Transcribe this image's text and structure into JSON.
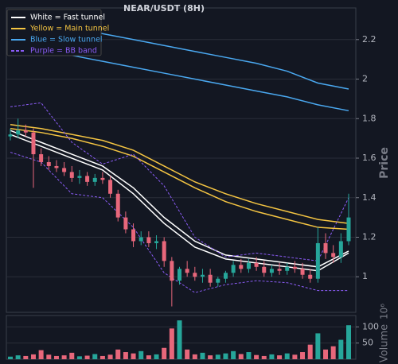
{
  "chart_data": [
    {
      "type": "candlestick",
      "title": "NEAR/USDT (8H)",
      "ylabel": "Price",
      "ylim": [
        0.82,
        2.36
      ],
      "yticks": [
        1.0,
        1.2,
        1.4,
        1.6,
        1.8,
        2.0,
        2.2
      ],
      "grid": true,
      "legend": "upper left",
      "up_color": "#26a69a",
      "down_color": "#e8677b",
      "x": [
        0,
        1,
        2,
        3,
        4,
        5,
        6,
        7,
        8,
        9,
        10,
        11,
        12,
        13,
        14,
        15,
        16,
        17,
        18,
        19,
        20,
        21,
        22,
        23,
        24,
        25,
        26,
        27,
        28,
        29,
        30,
        31,
        32,
        33,
        34,
        35,
        36,
        37,
        38,
        39,
        40,
        41,
        42,
        43,
        44
      ],
      "open": [
        1.71,
        1.72,
        1.74,
        1.73,
        1.62,
        1.58,
        1.56,
        1.55,
        1.53,
        1.5,
        1.51,
        1.48,
        1.5,
        1.49,
        1.42,
        1.3,
        1.24,
        1.18,
        1.2,
        1.17,
        1.18,
        1.08,
        0.98,
        1.04,
        1.02,
        1.0,
        1.01,
        0.97,
        0.99,
        1.02,
        1.06,
        1.04,
        1.07,
        1.05,
        1.02,
        1.04,
        1.03,
        1.05,
        1.04,
        1.01,
        0.99,
        1.17,
        1.12,
        1.1,
        1.18
      ],
      "high": [
        1.75,
        1.8,
        1.77,
        1.75,
        1.65,
        1.61,
        1.59,
        1.58,
        1.56,
        1.54,
        1.53,
        1.52,
        1.53,
        1.51,
        1.44,
        1.33,
        1.27,
        1.23,
        1.23,
        1.21,
        1.2,
        1.1,
        1.05,
        1.08,
        1.05,
        1.04,
        1.04,
        1.0,
        1.03,
        1.08,
        1.09,
        1.09,
        1.1,
        1.08,
        1.06,
        1.07,
        1.07,
        1.08,
        1.07,
        1.04,
        1.25,
        1.22,
        1.16,
        1.22,
        1.42
      ],
      "low": [
        1.69,
        1.7,
        1.71,
        1.45,
        1.56,
        1.54,
        1.53,
        1.51,
        1.48,
        1.47,
        1.46,
        1.46,
        1.47,
        1.4,
        1.28,
        1.22,
        1.15,
        1.16,
        1.15,
        1.14,
        1.05,
        0.85,
        0.96,
        1.0,
        0.98,
        0.97,
        0.95,
        0.95,
        0.97,
        1.0,
        1.02,
        1.02,
        1.03,
        1.0,
        1.0,
        1.01,
        1.01,
        1.02,
        0.99,
        0.97,
        0.97,
        1.09,
        1.07,
        1.07,
        1.16
      ],
      "close": [
        1.72,
        1.74,
        1.73,
        1.62,
        1.58,
        1.56,
        1.55,
        1.53,
        1.5,
        1.51,
        1.48,
        1.5,
        1.49,
        1.42,
        1.3,
        1.24,
        1.18,
        1.2,
        1.17,
        1.18,
        1.08,
        0.98,
        1.04,
        1.02,
        1.0,
        1.01,
        0.97,
        0.99,
        1.02,
        1.06,
        1.04,
        1.07,
        1.05,
        1.02,
        1.04,
        1.03,
        1.05,
        1.04,
        1.01,
        0.99,
        1.17,
        1.12,
        1.1,
        1.18,
        1.3
      ],
      "line_x": [
        0,
        4,
        8,
        12,
        16,
        20,
        24,
        28,
        32,
        36,
        40,
        44
      ],
      "series": [
        {
          "name": "White = Fast tunnel",
          "color": "#ffffff",
          "upper": [
            1.74,
            1.68,
            1.62,
            1.56,
            1.45,
            1.3,
            1.18,
            1.11,
            1.09,
            1.07,
            1.05,
            1.13
          ],
          "lower": [
            1.72,
            1.66,
            1.6,
            1.54,
            1.42,
            1.27,
            1.15,
            1.09,
            1.07,
            1.05,
            1.03,
            1.12
          ]
        },
        {
          "name": "Yellow = Main tunnel",
          "color": "#f5c542",
          "upper": [
            1.77,
            1.75,
            1.72,
            1.69,
            1.64,
            1.56,
            1.48,
            1.42,
            1.37,
            1.33,
            1.29,
            1.27
          ],
          "lower": [
            1.75,
            1.73,
            1.7,
            1.66,
            1.61,
            1.53,
            1.45,
            1.38,
            1.33,
            1.29,
            1.25,
            1.24
          ]
        },
        {
          "name": "Blue = Slow tunnel",
          "color": "#4aa8f0",
          "upper": [
            2.31,
            2.28,
            2.26,
            2.23,
            2.2,
            2.17,
            2.14,
            2.11,
            2.08,
            2.04,
            1.98,
            1.95
          ],
          "lower": [
            2.17,
            2.14,
            2.12,
            2.09,
            2.06,
            2.03,
            2.0,
            1.97,
            1.94,
            1.91,
            1.87,
            1.84
          ]
        },
        {
          "name": "Purple = BB band",
          "color": "#8b5cf6",
          "dashed": true,
          "upper": [
            1.86,
            1.88,
            1.68,
            1.57,
            1.62,
            1.46,
            1.2,
            1.1,
            1.12,
            1.1,
            1.08,
            1.4
          ],
          "lower": [
            1.63,
            1.58,
            1.42,
            1.4,
            1.25,
            1.02,
            0.92,
            0.96,
            0.98,
            0.97,
            0.93,
            0.93
          ]
        }
      ]
    },
    {
      "type": "bar",
      "ylabel": "Volume",
      "offset_text": "10⁶",
      "ylim": [
        0,
        135
      ],
      "yticks": [
        50,
        100
      ],
      "grid": true,
      "values": [
        8,
        12,
        10,
        15,
        28,
        14,
        10,
        12,
        20,
        9,
        11,
        16,
        10,
        14,
        30,
        22,
        18,
        25,
        12,
        15,
        35,
        95,
        120,
        30,
        15,
        20,
        12,
        14,
        18,
        25,
        16,
        22,
        13,
        10,
        15,
        12,
        18,
        14,
        22,
        45,
        80,
        30,
        40,
        60,
        105
      ]
    }
  ]
}
